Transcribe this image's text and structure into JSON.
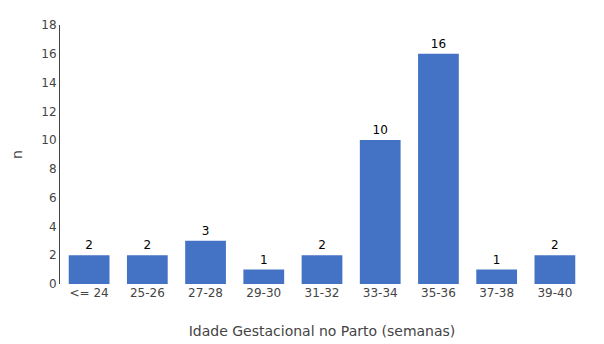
{
  "chart_data": {
    "type": "bar",
    "categories": [
      "<= 24",
      "25-26",
      "27-28",
      "29-30",
      "31-32",
      "33-34",
      "35-36",
      "37-38",
      "39-40"
    ],
    "values": [
      2,
      2,
      3,
      1,
      2,
      10,
      16,
      1,
      2
    ],
    "color": "#4472C4",
    "xlabel": "Idade Gestacional no Parto (semanas)",
    "ylabel": "n",
    "ylim": [
      0,
      18
    ],
    "yticks": [
      0,
      2,
      4,
      6,
      8,
      10,
      12,
      14,
      16,
      18
    ],
    "grid": false,
    "data_labels": true
  }
}
